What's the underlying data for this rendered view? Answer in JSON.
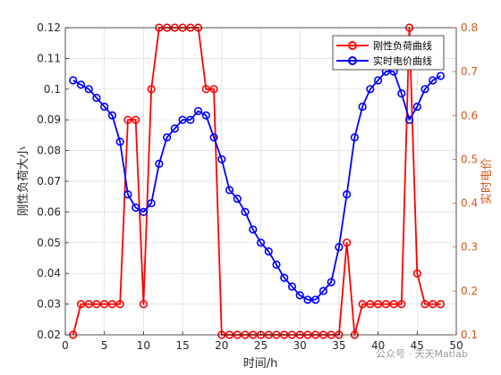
{
  "chart_data": {
    "type": "line",
    "xlabel": "时间/h",
    "ylabel_left": "刚性负荷大小",
    "ylabel_right": "实时电价",
    "xlim": [
      0,
      50
    ],
    "ylim_left": [
      0.02,
      0.12
    ],
    "ylim_right": [
      0.1,
      0.8
    ],
    "xticks": [
      "0",
      "5",
      "10",
      "15",
      "20",
      "25",
      "30",
      "35",
      "40",
      "45",
      "50"
    ],
    "yticks_left": [
      "0.02",
      "0.03",
      "0.04",
      "0.05",
      "0.06",
      "0.07",
      "0.08",
      "0.09",
      "0.1",
      "0.11",
      "0.12"
    ],
    "yticks_right": [
      "0.1",
      "0.2",
      "0.3",
      "0.4",
      "0.5",
      "0.6",
      "0.7",
      "0.8"
    ],
    "grid": true,
    "legend_position": "top-right",
    "x": [
      1,
      2,
      3,
      4,
      5,
      6,
      7,
      8,
      9,
      10,
      11,
      12,
      13,
      14,
      15,
      16,
      17,
      18,
      19,
      20,
      21,
      22,
      23,
      24,
      25,
      26,
      27,
      28,
      29,
      30,
      31,
      32,
      33,
      34,
      35,
      36,
      37,
      38,
      39,
      40,
      41,
      42,
      43,
      44,
      45,
      46,
      47,
      48
    ],
    "series": [
      {
        "name": "刚性负荷曲线",
        "axis": "left",
        "color": "#FF0000",
        "values": [
          0.02,
          0.03,
          0.03,
          0.03,
          0.03,
          0.03,
          0.03,
          0.09,
          0.09,
          0.03,
          0.1,
          0.12,
          0.12,
          0.12,
          0.12,
          0.12,
          0.12,
          0.1,
          0.1,
          0.02,
          0.02,
          0.02,
          0.02,
          0.02,
          0.02,
          0.02,
          0.02,
          0.02,
          0.02,
          0.02,
          0.02,
          0.02,
          0.02,
          0.02,
          0.02,
          0.05,
          0.02,
          0.03,
          0.03,
          0.03,
          0.03,
          0.03,
          0.03,
          0.12,
          0.04,
          0.03,
          0.03,
          0.03
        ]
      },
      {
        "name": "实时电价曲线",
        "axis": "right",
        "color": "#0000FF",
        "values": [
          0.68,
          0.67,
          0.66,
          0.64,
          0.62,
          0.6,
          0.54,
          0.42,
          0.39,
          0.38,
          0.4,
          0.49,
          0.55,
          0.57,
          0.59,
          0.59,
          0.61,
          0.6,
          0.55,
          0.5,
          0.43,
          0.41,
          0.38,
          0.34,
          0.31,
          0.29,
          0.26,
          0.23,
          0.21,
          0.19,
          0.18,
          0.18,
          0.2,
          0.22,
          0.3,
          0.42,
          0.55,
          0.62,
          0.66,
          0.68,
          0.7,
          0.7,
          0.65,
          0.59,
          0.62,
          0.66,
          0.68,
          0.69
        ]
      }
    ]
  },
  "watermark": "公众号 · 天天Matlab"
}
